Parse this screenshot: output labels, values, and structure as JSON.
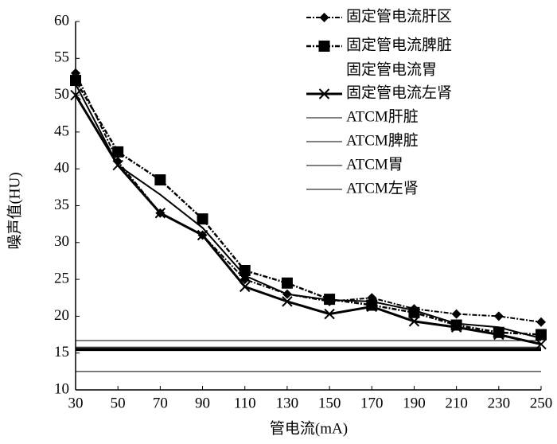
{
  "chart_data": {
    "type": "line",
    "x": [
      30,
      50,
      70,
      90,
      110,
      130,
      150,
      170,
      190,
      210,
      230,
      250
    ],
    "xlabel": "管电流(mA)",
    "ylabel": "噪声值(HU)",
    "xlim": [
      30,
      250
    ],
    "xticks": [
      30,
      50,
      70,
      90,
      110,
      130,
      150,
      170,
      190,
      210,
      230,
      250
    ],
    "ylim": [
      10,
      60
    ],
    "yticks": [
      10,
      15,
      20,
      25,
      30,
      35,
      40,
      45,
      50,
      55,
      60
    ],
    "series": [
      {
        "name": "固定管电流肝区",
        "color": "#000000",
        "marker": "diamond",
        "dashed": true,
        "values": [
          53,
          41,
          34,
          31,
          25,
          23,
          22,
          22.5,
          21,
          20.3,
          20,
          19.2
        ]
      },
      {
        "name": "固定管电流脾脏",
        "color": "#000000",
        "marker": "square",
        "dashed": true,
        "values": [
          52,
          42.3,
          38.5,
          33.2,
          26.2,
          24.5,
          22.3,
          21.5,
          20.5,
          18.8,
          17.8,
          17.5
        ]
      },
      {
        "name": "固定管电流胃",
        "color": "#000000",
        "marker": "none",
        "dashed": false,
        "values": [
          51.5,
          40.5,
          36.5,
          32,
          25.5,
          23,
          22.2,
          22,
          20.8,
          19,
          18.5,
          17
        ]
      },
      {
        "name": "固定管电流左肾",
        "color": "#000000",
        "marker": "x",
        "dashed": false,
        "values": [
          50,
          40.5,
          34,
          31,
          24,
          22,
          20.3,
          21.3,
          19.3,
          18.5,
          17.5,
          16.2
        ]
      }
    ],
    "reference_lines": [
      {
        "name": "ATCM肝脏",
        "color": "#000000",
        "value": 16.7
      },
      {
        "name": "ATCM脾脏",
        "color": "#000000",
        "value": 15.8
      },
      {
        "name": "ATCM胃",
        "color": "#000000",
        "value": 15.5
      },
      {
        "name": "ATCM左肾",
        "color": "#000000",
        "value": 12.5
      }
    ]
  }
}
